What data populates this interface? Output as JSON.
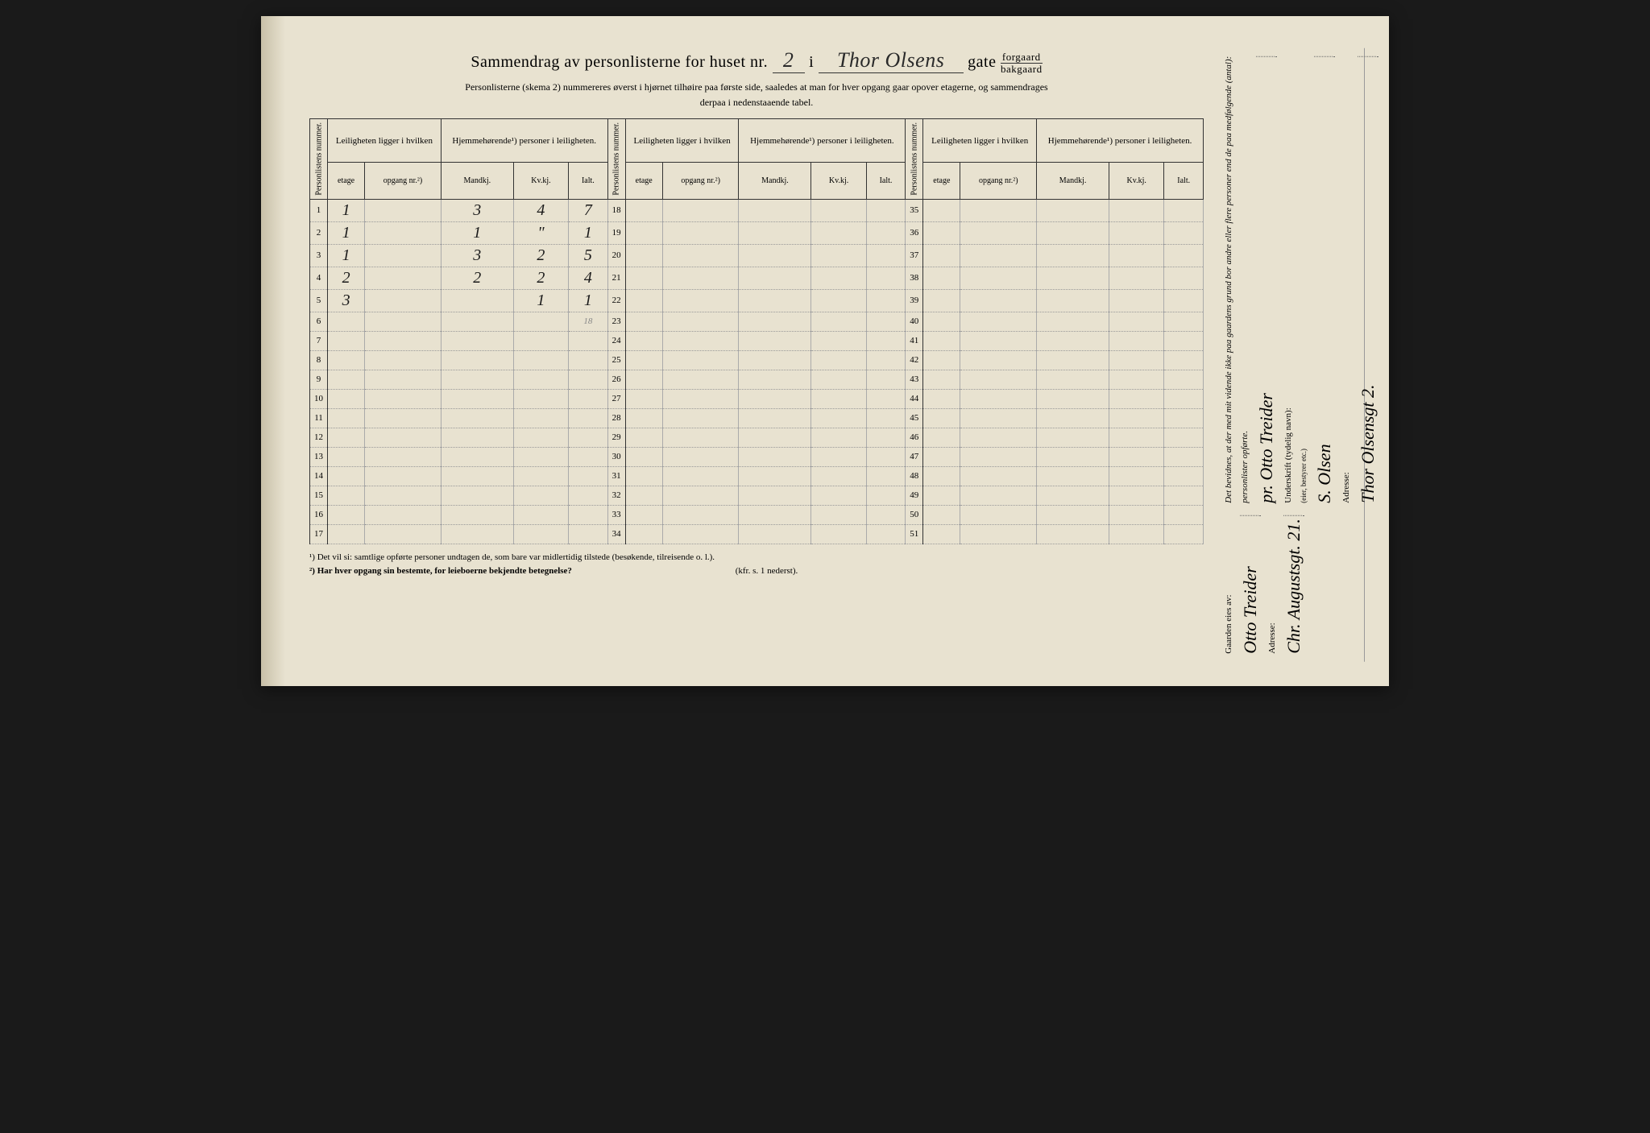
{
  "title": {
    "prefix": "Sammendrag av personlisterne for huset nr.",
    "house_nr": "2",
    "mid": "i",
    "street": "Thor Olsens",
    "suffix": "gate",
    "fraction_top": "forgaard",
    "fraction_bottom": "bakgaard"
  },
  "subtitle1": "Personlisterne (skema 2) nummereres øverst i hjørnet tilhøire paa første side, saaledes at man for hver opgang gaar opover etagerne, og sammendrages",
  "subtitle2": "derpaa i nedenstaaende tabel.",
  "headers": {
    "personlist": "Personlistens nummer.",
    "leilighet": "Leiligheten ligger i hvilken",
    "hjemme": "Hjemmehørende¹) personer i leiligheten.",
    "etage": "etage",
    "opgang": "opgang nr.²)",
    "mandkj": "Mandkj.",
    "kvkj": "Kv.kj.",
    "ialt": "Ialt."
  },
  "rows": [
    {
      "n": "1",
      "etage": "1",
      "opgang": "",
      "m": "3",
      "k": "4",
      "i": "7"
    },
    {
      "n": "2",
      "etage": "1",
      "opgang": "",
      "m": "1",
      "k": "\"",
      "i": "1"
    },
    {
      "n": "3",
      "etage": "1",
      "opgang": "",
      "m": "3",
      "k": "2",
      "i": "5"
    },
    {
      "n": "4",
      "etage": "2",
      "opgang": "",
      "m": "2",
      "k": "2",
      "i": "4"
    },
    {
      "n": "5",
      "etage": "3",
      "opgang": "",
      "m": "",
      "k": "1",
      "i": "1"
    },
    {
      "n": "6",
      "etage": "",
      "opgang": "",
      "m": "",
      "k": "",
      "i": "18"
    },
    {
      "n": "7"
    },
    {
      "n": "8"
    },
    {
      "n": "9"
    },
    {
      "n": "10"
    },
    {
      "n": "11"
    },
    {
      "n": "12"
    },
    {
      "n": "13"
    },
    {
      "n": "14"
    },
    {
      "n": "15"
    },
    {
      "n": "16"
    },
    {
      "n": "17"
    }
  ],
  "col2_start": 18,
  "col3_start": 35,
  "footnotes": {
    "f1": "¹) Det vil si: samtlige opførte personer undtagen de, som bare var midlertidig tilstede (besøkende, tilreisende o. l.).",
    "f2": "²) Har hver opgang sin bestemte, for leieboerne bekjendte betegnelse?",
    "f2_suffix": "(kfr. s. 1 nederst)."
  },
  "sidebar": {
    "statement": "Det bevidnes, at der med mit vidende ikke paa gaardens grund bor andre eller flere personer end de paa medfølgende (antal):",
    "personlister": "personlister opførte.",
    "underskrift_label": "Underskrift (tydelig navn):",
    "eler": "(eier, bestyrer etc.)",
    "adresse_label": "Adresse:",
    "gaarden_label": "Gaarden eies av:",
    "owner": "Otto Treider",
    "owner2": "pr. Otto Treider",
    "sign": "S. Olsen",
    "addr1": "Chr. Augustsgt. 21.",
    "addr2": "Thor Olsensgt 2."
  },
  "colors": {
    "paper": "#e8e2d0",
    "ink": "#2a2a2a",
    "rule": "#333333"
  }
}
